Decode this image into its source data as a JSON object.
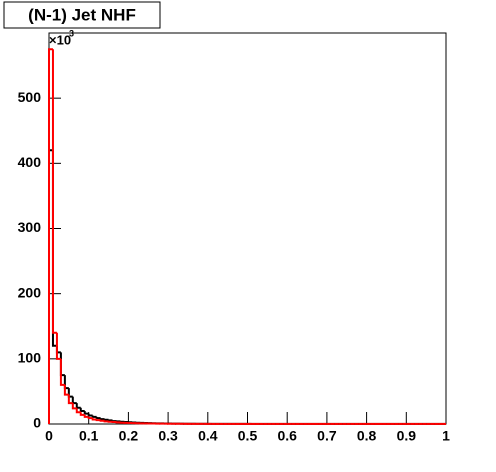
{
  "chart_data": {
    "type": "histogram",
    "title": "(N-1) Jet NHF",
    "y_multiplier": "×10",
    "y_multiplier_exponent": "3",
    "bins": [
      0,
      0.01,
      0.02,
      0.03,
      0.04,
      0.05,
      0.06,
      0.07,
      0.08,
      0.09,
      0.1,
      0.11,
      0.12,
      0.13,
      0.14,
      0.15,
      0.16,
      0.17,
      0.18,
      0.19,
      0.2,
      0.21,
      0.22,
      0.23,
      0.24,
      0.25,
      0.26,
      0.27,
      0.28,
      0.29,
      0.3,
      0.31,
      0.32,
      0.33,
      0.34,
      0.35,
      0.36,
      0.37,
      0.38,
      0.39,
      0.4,
      0.41,
      0.42,
      0.43,
      0.44,
      0.45,
      0.46,
      0.47,
      0.48,
      0.49,
      0.5,
      0.51,
      0.52,
      0.53,
      0.54,
      0.55,
      0.56,
      0.57,
      0.58,
      0.59,
      0.6,
      0.61,
      0.62,
      0.63,
      0.64,
      0.65,
      0.66,
      0.67,
      0.68,
      0.69,
      0.7,
      0.71,
      0.72,
      0.73,
      0.74,
      0.75,
      0.76,
      0.77,
      0.78,
      0.79,
      0.8,
      0.81,
      0.82,
      0.83,
      0.84,
      0.85,
      0.86,
      0.87,
      0.88,
      0.89,
      0.9,
      0.91,
      0.92,
      0.93,
      0.94,
      0.95,
      0.96,
      0.97,
      0.98,
      0.99,
      1
    ],
    "series": [
      {
        "color": "#000000",
        "values": [
          420,
          120,
          110,
          75,
          55,
          42,
          32,
          25,
          20,
          16,
          13,
          11,
          9,
          7.5,
          6.5,
          5.5,
          4.5,
          4,
          3.5,
          3,
          2.6,
          2.3,
          2,
          1.8,
          1.6,
          1.4,
          1.2,
          1,
          0.9,
          0.8,
          0.7,
          0.6,
          0.5,
          0.5,
          0.4,
          0.4,
          0.3,
          0.3,
          0.3,
          0.3,
          0.2,
          0.2,
          0.2,
          0.2,
          0.2,
          0.2,
          0.2,
          0.2,
          0.2,
          0.2,
          0.1,
          0.1,
          0.1,
          0.1,
          0.1,
          0.1,
          0.1,
          0.1,
          0.1,
          0.1,
          0.1,
          0.1,
          0.1,
          0.1,
          0.1,
          0.1,
          0.1,
          0.1,
          0.1,
          0.1,
          0.1,
          0.1,
          0.1,
          0.1,
          0.1,
          0.1,
          0.1,
          0.1,
          0.1,
          0.1,
          0.1,
          0.1,
          0.1,
          0.1,
          0.1,
          0.1,
          0.1,
          0.1,
          0.1,
          0.1,
          0.1,
          0.1,
          0.1,
          0.1,
          0.1,
          0.1,
          0.1,
          0.1,
          0.1,
          0.1
        ]
      },
      {
        "color": "#ff0000",
        "values": [
          575,
          140,
          100,
          60,
          45,
          32,
          24,
          18,
          14,
          11,
          9,
          7,
          6,
          5,
          4,
          3.5,
          3,
          2.5,
          2,
          1.8,
          1.5,
          1.3,
          1.1,
          1,
          0.9,
          0.8,
          0.7,
          0.6,
          0.5,
          0.5,
          0.4,
          0.4,
          0.3,
          0.3,
          0.3,
          0.2,
          0.2,
          0.2,
          0.2,
          0.2,
          0.1,
          0.1,
          0.1,
          0.1,
          0.1,
          0.1,
          0.1,
          0.1,
          0.1,
          0.1,
          0.1,
          0.1,
          0.1,
          0.1,
          0.1,
          0.1,
          0.1,
          0.1,
          0.1,
          0.1,
          0.1,
          0.1,
          0.1,
          0.1,
          0.1,
          0.1,
          0.1,
          0.1,
          0.1,
          0.1,
          0.1,
          0.1,
          0.1,
          0.1,
          0.1,
          0.1,
          0.1,
          0.1,
          0.1,
          0.1,
          0.1,
          0.1,
          0.1,
          0.1,
          0.1,
          0.1,
          0.1,
          0.1,
          0.1,
          0.1,
          0.1,
          0.1,
          0.1,
          0.1,
          0.1,
          0.1,
          0.1,
          0.1,
          0.1,
          0.1
        ]
      }
    ],
    "xlim": [
      0,
      1
    ],
    "xticks": [
      0,
      0.1,
      0.2,
      0.3,
      0.4,
      0.5,
      0.6,
      0.7,
      0.8,
      0.9,
      1
    ],
    "ylim": [
      0,
      600
    ],
    "yticks": [
      0,
      100,
      200,
      300,
      400,
      500
    ]
  }
}
